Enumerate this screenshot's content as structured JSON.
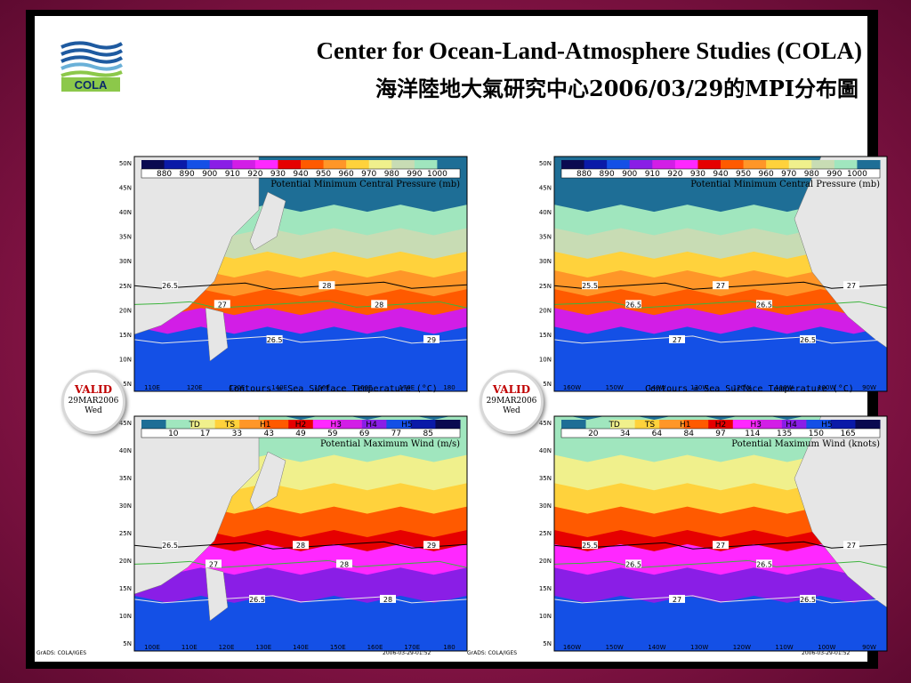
{
  "header": {
    "title_en": "Center for Ocean-Land-Atmosphere Studies (COLA)",
    "title_zh": "海洋陸地大氣研究中心2006/03/29的MPI分布圖",
    "logo_text": "COLA"
  },
  "valid_stamp": {
    "label": "VALID",
    "date": "29MAR2006",
    "day": "Wed"
  },
  "contour_caption": "Contours = Sea Surface Temperature (°C)",
  "footer": {
    "left": "GrADS: COLA/IGES",
    "right": "2006-03-29-01:52"
  },
  "pressure_colorbar": {
    "labels": [
      "880",
      "890",
      "900",
      "910",
      "920",
      "930",
      "940",
      "950",
      "960",
      "970",
      "980",
      "990",
      "1000"
    ],
    "colors": [
      "#0a0a50",
      "#0a1aa8",
      "#1450e6",
      "#8a1ee6",
      "#d21ee6",
      "#ff28ff",
      "#e60000",
      "#ff5a00",
      "#ff9628",
      "#ffd23c",
      "#f0f08c",
      "#c8dcb4",
      "#a0e6be",
      "#1e6e96"
    ]
  },
  "wind_colorbar": {
    "cats": [
      "TD",
      "TS",
      "H1",
      "H2",
      "H3",
      "H4",
      "H5"
    ],
    "labels_ms": [
      "10",
      "17",
      "33",
      "43",
      "49",
      "59",
      "69",
      "77",
      "85"
    ],
    "labels_kt": [
      "20",
      "34",
      "64",
      "84",
      "97",
      "114",
      "135",
      "150",
      "165"
    ],
    "colors": [
      "#1e6e96",
      "#a0e6be",
      "#f0f08c",
      "#ffd23c",
      "#ff9628",
      "#ff5a00",
      "#e60000",
      "#ff28ff",
      "#d21ee6",
      "#8a1ee6",
      "#1450e6",
      "#0a1aa8",
      "#0a0a50"
    ]
  },
  "panels": {
    "tl": {
      "title": "Potential Minimum Central Pressure (mb)",
      "lat_labels": [
        "50N",
        "45N",
        "40N",
        "35N",
        "30N",
        "25N",
        "20N",
        "15N",
        "10N",
        "5N"
      ],
      "lon_labels": [
        "110E",
        "120E",
        "130E",
        "140E",
        "150E",
        "160E",
        "170E",
        "180"
      ],
      "contours": [
        "26.5",
        "27",
        "26.5",
        "28",
        "28",
        "29"
      ]
    },
    "tr": {
      "title": "Potential Minimum Central Pressure (mb)",
      "lat_labels": [
        "50N",
        "45N",
        "40N",
        "35N",
        "30N",
        "25N",
        "20N",
        "15N",
        "10N",
        "5N"
      ],
      "lon_labels": [
        "160W",
        "150W",
        "140W",
        "130W",
        "120W",
        "110W",
        "100W",
        "90W"
      ],
      "contours": [
        "25.5",
        "26.5",
        "27",
        "27",
        "26.5",
        "26.5",
        "27"
      ]
    },
    "bl": {
      "title": "Potential Maximum Wind (m/s)",
      "lat_labels": [
        "45N",
        "40N",
        "35N",
        "30N",
        "25N",
        "20N",
        "15N",
        "10N",
        "5N"
      ],
      "lon_labels": [
        "100E",
        "110E",
        "120E",
        "130E",
        "140E",
        "150E",
        "160E",
        "170E",
        "180"
      ],
      "contours": [
        "26.5",
        "27",
        "26.5",
        "28",
        "28",
        "28",
        "29"
      ]
    },
    "br": {
      "title": "Potential Maximum Wind (knots)",
      "lat_labels": [
        "45N",
        "40N",
        "35N",
        "30N",
        "25N",
        "20N",
        "15N",
        "10N",
        "5N"
      ],
      "lon_labels": [
        "160W",
        "150W",
        "140W",
        "130W",
        "120W",
        "110W",
        "100W",
        "90W"
      ],
      "contours": [
        "25.5",
        "26.5",
        "27",
        "27",
        "26.5",
        "26.5",
        "27"
      ]
    }
  }
}
